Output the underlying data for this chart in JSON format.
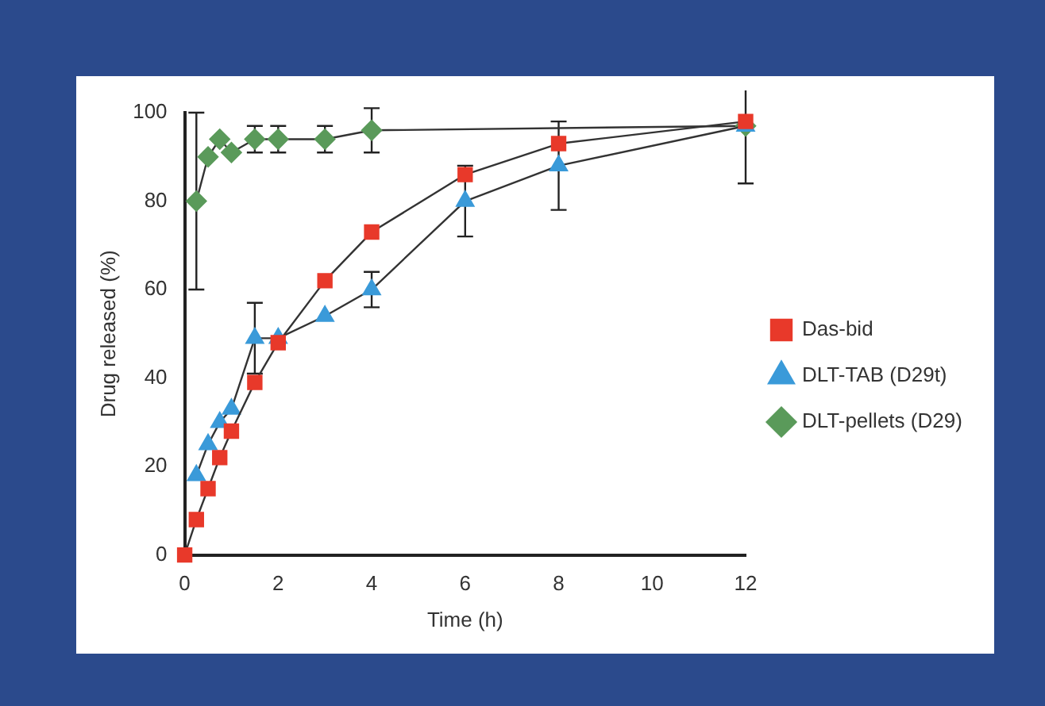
{
  "chart_data": {
    "type": "line",
    "xlabel": "Time (h)",
    "ylabel": "Drug released (%)",
    "xlim": [
      0,
      12
    ],
    "xticks": [
      0,
      2,
      4,
      6,
      8,
      10,
      12
    ],
    "ylim": [
      0,
      100
    ],
    "yticks": [
      0,
      20,
      40,
      60,
      80,
      100
    ],
    "grid": false,
    "legend": "right",
    "line_style": "solid",
    "series": [
      {
        "name": "Das-bid",
        "color": "#e8392a",
        "marker": "square",
        "x": [
          0,
          0.25,
          0.5,
          0.75,
          1,
          1.5,
          2,
          3,
          4,
          6,
          8,
          12
        ],
        "values": [
          0,
          8,
          15,
          22,
          28,
          39,
          48,
          62,
          73,
          86,
          93,
          98
        ]
      },
      {
        "name": "DLT-TAB (D29t)",
        "color": "#3a9ad9",
        "marker": "triangle",
        "x": [
          0.25,
          0.5,
          0.75,
          1,
          1.5,
          2,
          3,
          4,
          6,
          8,
          12
        ],
        "values": [
          18,
          25,
          30,
          33,
          49,
          49,
          54,
          60,
          80,
          88,
          97
        ],
        "errors": [
          null,
          null,
          null,
          null,
          8,
          null,
          null,
          4,
          8,
          10,
          13
        ]
      },
      {
        "name": "DLT-pellets (D29)",
        "color": "#5a9a5a",
        "marker": "diamond",
        "x": [
          0.25,
          0.5,
          0.75,
          1,
          1.5,
          2,
          3,
          4,
          12
        ],
        "values": [
          80,
          90,
          94,
          91,
          94,
          94,
          94,
          96,
          97
        ],
        "errors": [
          20,
          null,
          null,
          null,
          3,
          3,
          3,
          5,
          null
        ]
      }
    ]
  }
}
